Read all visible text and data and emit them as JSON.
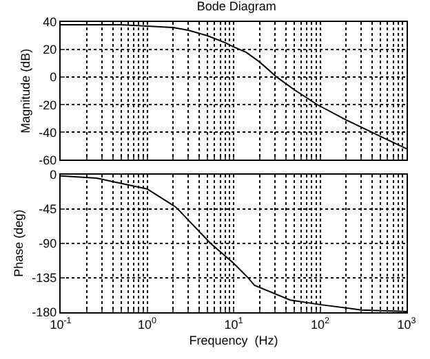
{
  "chart_data": [
    {
      "type": "line",
      "title": "Bode Diagram",
      "ylabel": "Magnitude (dB)",
      "x": [
        0.1,
        0.5,
        1,
        2,
        3,
        5,
        8,
        10,
        14,
        20,
        31.6,
        50,
        93,
        200,
        500,
        1000
      ],
      "series": [
        {
          "color": "#000000",
          "values": [
            38,
            38,
            37,
            36,
            34,
            30,
            25,
            22,
            18,
            11,
            0,
            -9,
            -20,
            -31,
            -43,
            -52
          ]
        }
      ],
      "log": "x",
      "xlim": [
        0.1,
        1000
      ],
      "ylim": [
        -60,
        40
      ],
      "yticks": [
        -60,
        -40,
        -20,
        0,
        20,
        40
      ],
      "xticks": [
        {
          "value": 0.1,
          "label": null
        },
        {
          "value": 1,
          "label": null
        },
        {
          "value": 10,
          "label": null
        },
        {
          "value": 100,
          "label": null
        },
        {
          "value": 1000,
          "label": null
        }
      ],
      "tick_labels": "y",
      "grid": true,
      "line_style": "solid",
      "marker": "none"
    },
    {
      "type": "line",
      "xlabel": "Frequency  (Hz)",
      "ylabel": "Phase (deg)",
      "x": [
        0.1,
        0.26,
        1,
        2.1,
        2.25,
        5.4,
        10,
        14.7,
        17.5,
        45,
        100,
        300,
        1000
      ],
      "series": [
        {
          "color": "#000000",
          "values": [
            -2,
            -5,
            -19,
            -42,
            -45,
            -90,
            -116,
            -135,
            -145,
            -164,
            -170,
            -177,
            -179
          ]
        }
      ],
      "log": "x",
      "xlim": [
        0.1,
        1000
      ],
      "ylim": [
        -180,
        0
      ],
      "yticks": [
        -180,
        -135,
        -90,
        -45,
        0
      ],
      "xticks": [
        {
          "value": 0.1,
          "label": "10$^{-1}$"
        },
        {
          "value": 1,
          "label": "10$^{0}$"
        },
        {
          "value": 10,
          "label": "10$^{1}$"
        },
        {
          "value": 100,
          "label": "10$^{2}$"
        },
        {
          "value": 1000,
          "label": "10$^{3}$"
        }
      ],
      "grid": true,
      "line_style": "solid",
      "marker": "none"
    }
  ]
}
